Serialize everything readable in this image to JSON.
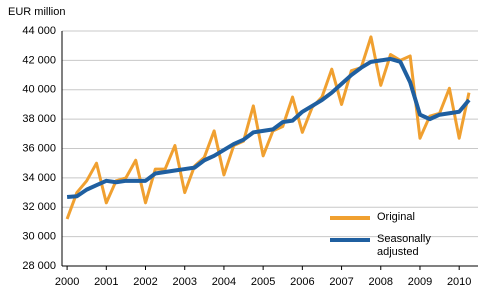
{
  "chart_data": {
    "type": "line",
    "y_label": "EUR million",
    "x": [
      2000,
      2000.25,
      2000.5,
      2000.75,
      2001,
      2001.25,
      2001.5,
      2001.75,
      2002,
      2002.25,
      2002.5,
      2002.75,
      2003,
      2003.25,
      2003.5,
      2003.75,
      2004,
      2004.25,
      2004.5,
      2004.75,
      2005,
      2005.25,
      2005.5,
      2005.75,
      2006,
      2006.25,
      2006.5,
      2006.75,
      2007,
      2007.25,
      2007.5,
      2007.75,
      2008,
      2008.25,
      2008.5,
      2008.75,
      2009,
      2009.25,
      2009.5,
      2009.75,
      2010,
      2010.25
    ],
    "series": [
      {
        "name": "Original",
        "color": "#f0a030",
        "values": [
          31200,
          33000,
          33800,
          35000,
          32300,
          33800,
          34000,
          35200,
          32300,
          34600,
          34600,
          36200,
          33000,
          34800,
          35400,
          37200,
          34200,
          36200,
          36500,
          38900,
          35500,
          37200,
          37500,
          39500,
          37100,
          38800,
          39500,
          41400,
          39000,
          41300,
          41500,
          43600,
          40300,
          42400,
          42000,
          42300,
          36700,
          38200,
          38400,
          40100,
          36700,
          39800
        ]
      },
      {
        "name": "Seasonally adjusted",
        "color": "#1f5fa0",
        "values": [
          32700,
          32750,
          33200,
          33500,
          33800,
          33700,
          33800,
          33800,
          33800,
          34300,
          34400,
          34500,
          34600,
          34700,
          35200,
          35500,
          35900,
          36300,
          36600,
          37100,
          37200,
          37300,
          37800,
          37900,
          38500,
          38900,
          39300,
          39800,
          40400,
          41000,
          41500,
          41900,
          42000,
          42100,
          41900,
          40500,
          38300,
          38000,
          38300,
          38400,
          38500,
          39300
        ]
      }
    ],
    "xlim": [
      1999.87,
      2010.48
    ],
    "xticks": [
      2000,
      2001,
      2002,
      2003,
      2004,
      2005,
      2006,
      2007,
      2008,
      2009,
      2010
    ],
    "ylim": [
      28000,
      44000
    ],
    "yticks": [
      {
        "value": 28000,
        "label": "28 000"
      },
      {
        "value": 30000,
        "label": "30 000"
      },
      {
        "value": 32000,
        "label": "32 000"
      },
      {
        "value": 34000,
        "label": "34 000"
      },
      {
        "value": 36000,
        "label": "36 000"
      },
      {
        "value": 38000,
        "label": "38 000"
      },
      {
        "value": 40000,
        "label": "40 000"
      },
      {
        "value": 42000,
        "label": "42 000"
      },
      {
        "value": 44000,
        "label": "44 000"
      }
    ],
    "grid": true
  }
}
